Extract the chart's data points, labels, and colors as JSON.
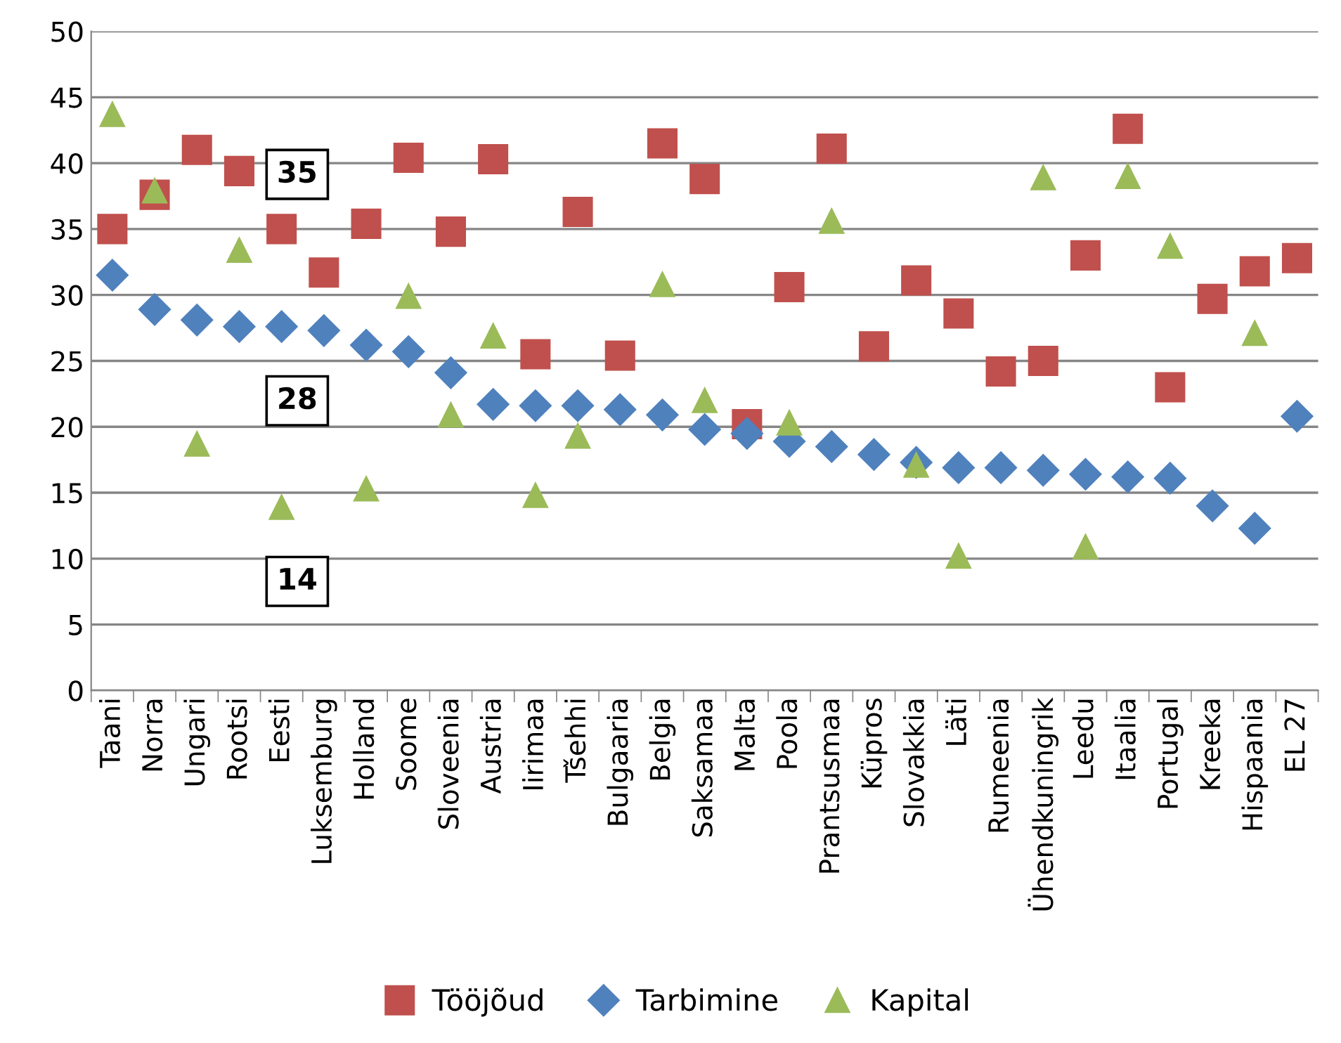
{
  "chart_data": {
    "type": "scatter",
    "categories": [
      "Taani",
      "Norra",
      "Ungari",
      "Rootsi",
      "Eesti",
      "Luksemburg",
      "Holland",
      "Soome",
      "Sloveenia",
      "Austria",
      "Iirimaa",
      "Tšehhi",
      "Bulgaaria",
      "Belgia",
      "Saksamaa",
      "Malta",
      "Poola",
      "Prantsusmaa",
      "Küpros",
      "Slovakkia",
      "Läti",
      "Rumeenia",
      "Ühendkuningrik",
      "Leedu",
      "Itaalia",
      "Portugal",
      "Kreeka",
      "Hispaania",
      "EL 27"
    ],
    "series": [
      {
        "name": "Tööjõud",
        "color": "#c0504d",
        "marker": "square",
        "values": [
          35.0,
          37.6,
          41.0,
          39.4,
          35.0,
          31.7,
          35.4,
          40.4,
          34.8,
          40.3,
          25.5,
          36.3,
          25.4,
          41.5,
          38.8,
          20.2,
          30.6,
          41.1,
          26.1,
          31.1,
          28.6,
          24.2,
          25.0,
          33.0,
          42.6,
          23.0,
          29.7,
          31.8,
          32.8
        ]
      },
      {
        "name": "Tarbimine",
        "color": "#4f81bd",
        "marker": "diamond",
        "values": [
          31.5,
          28.9,
          28.1,
          27.6,
          27.6,
          27.3,
          26.2,
          25.7,
          24.1,
          21.7,
          21.6,
          21.6,
          21.3,
          20.9,
          19.8,
          19.5,
          18.9,
          18.5,
          17.9,
          17.3,
          16.9,
          16.9,
          16.7,
          16.4,
          16.2,
          16.1,
          14.0,
          12.3,
          20.8
        ]
      },
      {
        "name": "Kapital",
        "color": "#9bbb59",
        "marker": "triangle",
        "values": [
          43.7,
          37.9,
          18.7,
          33.4,
          13.9,
          null,
          15.3,
          29.9,
          20.9,
          26.9,
          14.8,
          19.3,
          null,
          30.8,
          22.0,
          null,
          20.3,
          35.6,
          null,
          17.1,
          10.2,
          null,
          38.9,
          10.9,
          39.0,
          33.7,
          null,
          27.1,
          null
        ]
      }
    ],
    "annotations": [
      {
        "text": "35",
        "x": "Eesti",
        "y": 35.0
      },
      {
        "text": "28",
        "x": "Eesti",
        "y": 27.6
      },
      {
        "text": "14",
        "x": "Eesti",
        "y": 13.9
      }
    ],
    "ylim": [
      0,
      50
    ],
    "yticks": [
      0,
      5,
      10,
      15,
      20,
      25,
      30,
      35,
      40,
      45,
      50
    ],
    "grid": "y",
    "legend": "bottom"
  }
}
